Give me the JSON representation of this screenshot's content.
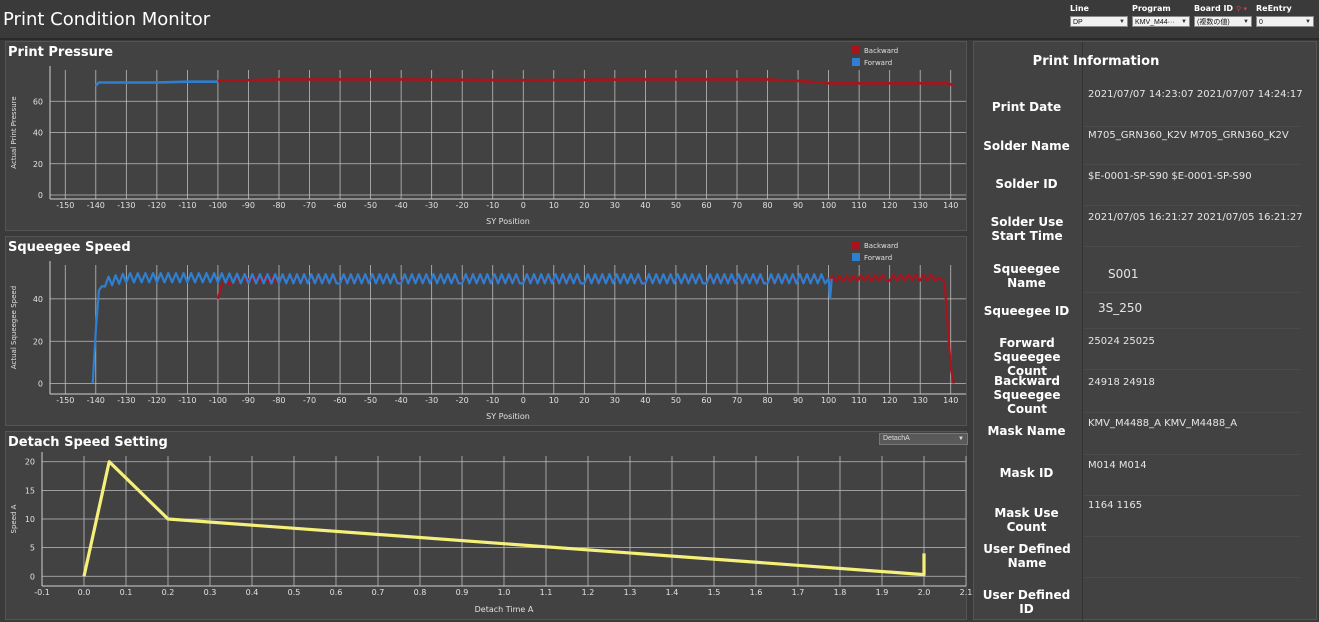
{
  "app": {
    "title": "Print Condition Monitor"
  },
  "filters": [
    {
      "label": "Line",
      "value": "DP"
    },
    {
      "label": "Program",
      "value": "KMV_M44···"
    },
    {
      "label": "Board ID",
      "value": "(複数の値)"
    },
    {
      "label": "ReEntry",
      "value": "0"
    }
  ],
  "colors": {
    "backward": "#a8141b",
    "forward": "#2f7fd0",
    "detach": "#f5f07a"
  },
  "detach_selector": {
    "value": "DetachA"
  },
  "info": {
    "title": "Print Information",
    "rows": [
      {
        "label": "Print Date",
        "value": "2021/07/07 14:23:07  2021/07/07 14:24:17"
      },
      {
        "label": "Solder Name",
        "value": "M705_GRN360_K2V  M705_GRN360_K2V"
      },
      {
        "label": "Solder ID",
        "value": "$E-0001-SP-S90  $E-0001-SP-S90"
      },
      {
        "label": "Solder Use Start Time",
        "value": "2021/07/05 16:21:27  2021/07/05 16:21:27"
      },
      {
        "label": "Squeegee Name",
        "value": "S001"
      },
      {
        "label": "Squeegee ID",
        "value": "3S_250"
      },
      {
        "label": "Forward Squeegee Count",
        "value": "25024  25025"
      },
      {
        "label": "Backward Squeegee Count",
        "value": "24918  24918"
      },
      {
        "label": "Mask Name",
        "value": "KMV_M4488_A  KMV_M4488_A"
      },
      {
        "label": "Mask ID",
        "value": "M014  M014"
      },
      {
        "label": "Mask Use Count",
        "value": "1164  1165"
      },
      {
        "label": "User Defined Name",
        "value": ""
      },
      {
        "label": "User Defined ID",
        "value": ""
      }
    ]
  },
  "chart_data": [
    {
      "type": "line",
      "title": "Print Pressure",
      "xlabel": "SY Position",
      "ylabel": "Actual Print Pressure",
      "xlim": [
        -155,
        145
      ],
      "ylim": [
        0,
        80
      ],
      "xticks": [
        -150,
        -140,
        -130,
        -120,
        -110,
        -100,
        -90,
        -80,
        -70,
        -60,
        -50,
        -40,
        -30,
        -20,
        -10,
        0,
        10,
        20,
        30,
        40,
        50,
        60,
        70,
        80,
        90,
        100,
        110,
        120,
        130,
        140
      ],
      "yticks": [
        0,
        20,
        40,
        60
      ],
      "legend": "top-right",
      "series": [
        {
          "name": "Backward",
          "points": [
            [
              -100,
              73
            ],
            [
              -80,
              74
            ],
            [
              -40,
              74
            ],
            [
              0,
              73.5
            ],
            [
              40,
              74
            ],
            [
              80,
              74
            ],
            [
              90,
              73
            ],
            [
              100,
              71.5
            ],
            [
              120,
              71.5
            ],
            [
              139,
              71.5
            ],
            [
              141,
              70
            ]
          ]
        },
        {
          "name": "Forward",
          "points": [
            [
              -140,
              70
            ],
            [
              -139,
              72
            ],
            [
              -130,
              72
            ],
            [
              -120,
              72
            ],
            [
              -110,
              72.5
            ],
            [
              -100,
              72.5
            ]
          ]
        }
      ]
    },
    {
      "type": "line",
      "title": "Squeegee Speed",
      "xlabel": "SY Position",
      "ylabel": "Actual Squeegee Speed",
      "xlim": [
        -155,
        145
      ],
      "ylim": [
        -3,
        56
      ],
      "xticks": [
        -150,
        -140,
        -130,
        -120,
        -110,
        -100,
        -90,
        -80,
        -70,
        -60,
        -50,
        -40,
        -30,
        -20,
        -10,
        0,
        10,
        20,
        30,
        40,
        50,
        60,
        70,
        80,
        90,
        100,
        110,
        120,
        130,
        140
      ],
      "yticks": [
        0,
        20,
        40
      ],
      "legend": "top-right",
      "series": [
        {
          "name": "Backward",
          "points": [
            [
              -100,
              40
            ],
            [
              -99,
              47
            ],
            [
              -95,
              49
            ],
            [
              -80,
              49.5
            ],
            [
              -60,
              49
            ],
            [
              -40,
              49.5
            ],
            [
              -20,
              49.5
            ],
            [
              0,
              49
            ],
            [
              20,
              49
            ],
            [
              40,
              49.5
            ],
            [
              60,
              49
            ],
            [
              80,
              49
            ],
            [
              100,
              49.5
            ],
            [
              120,
              50
            ],
            [
              136,
              50
            ],
            [
              138,
              48
            ],
            [
              140,
              8
            ],
            [
              141,
              0
            ]
          ]
        },
        {
          "name": "Forward",
          "points": [
            [
              -141,
              0
            ],
            [
              -140,
              25
            ],
            [
              -139,
              44
            ],
            [
              -137,
              48
            ],
            [
              -130,
              50
            ],
            [
              -120,
              50
            ],
            [
              -110,
              50
            ],
            [
              -100,
              50
            ],
            [
              -90,
              49.5
            ],
            [
              -80,
              49.5
            ],
            [
              -60,
              49.5
            ],
            [
              -40,
              49.5
            ],
            [
              -20,
              49.5
            ],
            [
              0,
              49.5
            ],
            [
              20,
              49.5
            ],
            [
              40,
              49.5
            ],
            [
              60,
              49.5
            ],
            [
              80,
              49.5
            ],
            [
              100,
              49.5
            ],
            [
              100.5,
              40
            ],
            [
              101,
              49.5
            ]
          ]
        }
      ]
    },
    {
      "type": "line",
      "title": "Detach Speed Setting",
      "xlabel": "Detach Time A",
      "ylabel": "Speed A",
      "xlim": [
        -0.1,
        2.1
      ],
      "ylim": [
        -1,
        21
      ],
      "xticks": [
        -0.1,
        0.0,
        0.1,
        0.2,
        0.3,
        0.4,
        0.5,
        0.6,
        0.7,
        0.8,
        0.9,
        1.0,
        1.1,
        1.2,
        1.3,
        1.4,
        1.5,
        1.6,
        1.7,
        1.8,
        1.9,
        2.0,
        2.1
      ],
      "yticks": [
        0,
        5,
        10,
        15,
        20
      ],
      "series": [
        {
          "name": "DetachA",
          "points": [
            [
              0,
              0
            ],
            [
              0.06,
              20
            ],
            [
              0.2,
              10
            ],
            [
              2.0,
              0.3
            ],
            [
              2.0,
              4
            ]
          ]
        }
      ]
    }
  ]
}
